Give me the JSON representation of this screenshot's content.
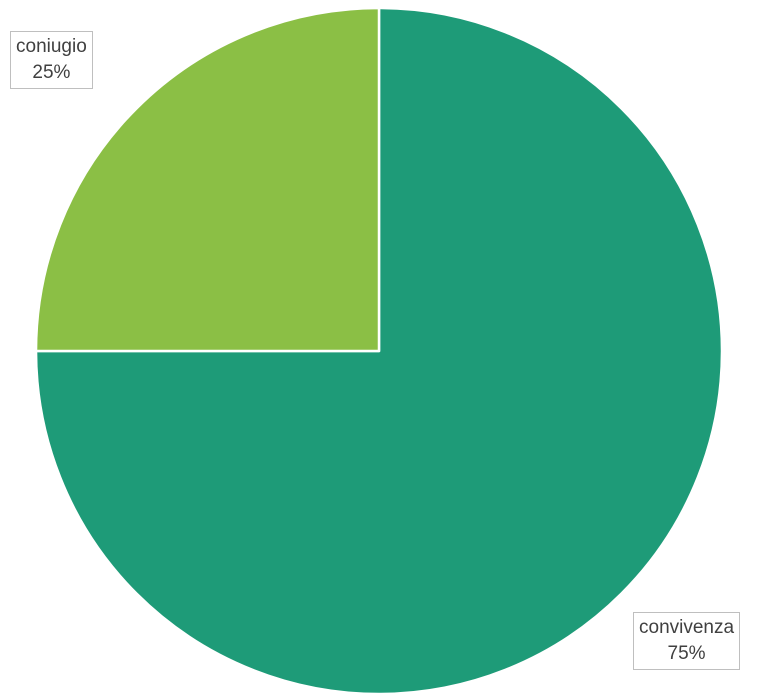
{
  "chart_data": {
    "type": "pie",
    "slices": [
      {
        "label": "convivenza",
        "value": 75,
        "display": "75%",
        "color": "#1e9b78"
      },
      {
        "label": "coniugio",
        "value": 25,
        "display": "25%",
        "color": "#8bbf45"
      }
    ],
    "start_angle_deg": 0,
    "direction": "clockwise",
    "slice_border_color": "#ffffff"
  }
}
